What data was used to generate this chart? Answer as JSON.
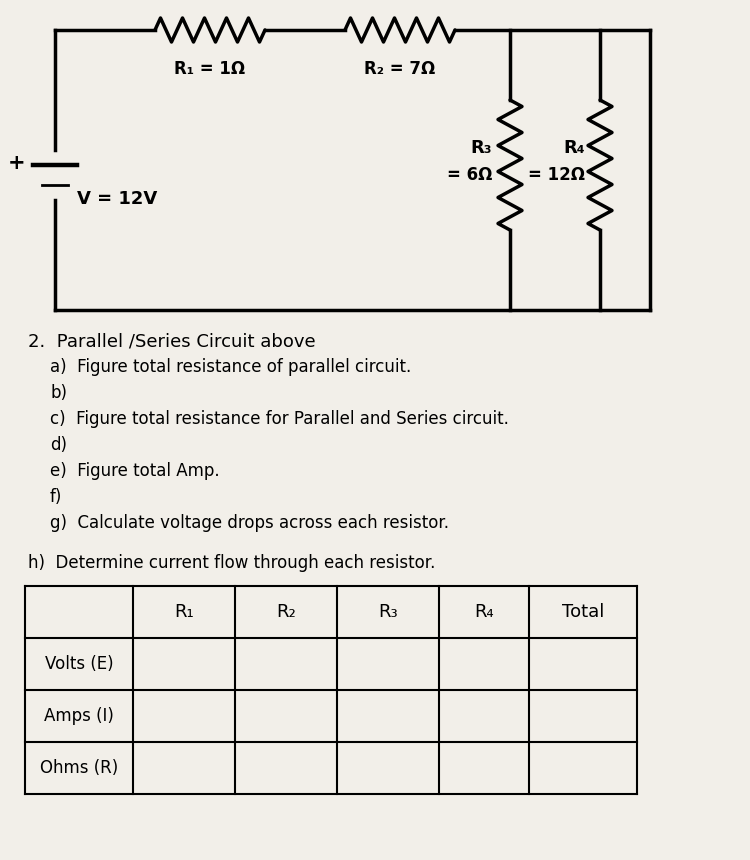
{
  "bg_color": "#f2efe9",
  "circuit": {
    "R1_label": "R₁ = 1Ω",
    "R2_label": "R₂ = 7Ω",
    "R3_label": "R₃",
    "R3_val": "= 6Ω",
    "R4_label": "R₄",
    "R4_val": "= 12Ω",
    "V_label": "V = 12V"
  },
  "question_number": "2.",
  "question_title": "Parallel /Series Circuit above",
  "questions": [
    "a)  Figure total resistance of parallel circuit.",
    "b)",
    "c)  Figure total resistance for Parallel and Series circuit.",
    "d)",
    "e)  Figure total Amp.",
    "f)",
    "g)  Calculate voltage drops across each resistor."
  ],
  "h_label": "h)  Determine current flow through each resistor.",
  "table_headers": [
    "",
    "R₁",
    "R₂",
    "R₃",
    "R₄",
    "Total"
  ],
  "table_rows": [
    "Volts (E)",
    "Amps (I)",
    "Ohms (R)"
  ]
}
